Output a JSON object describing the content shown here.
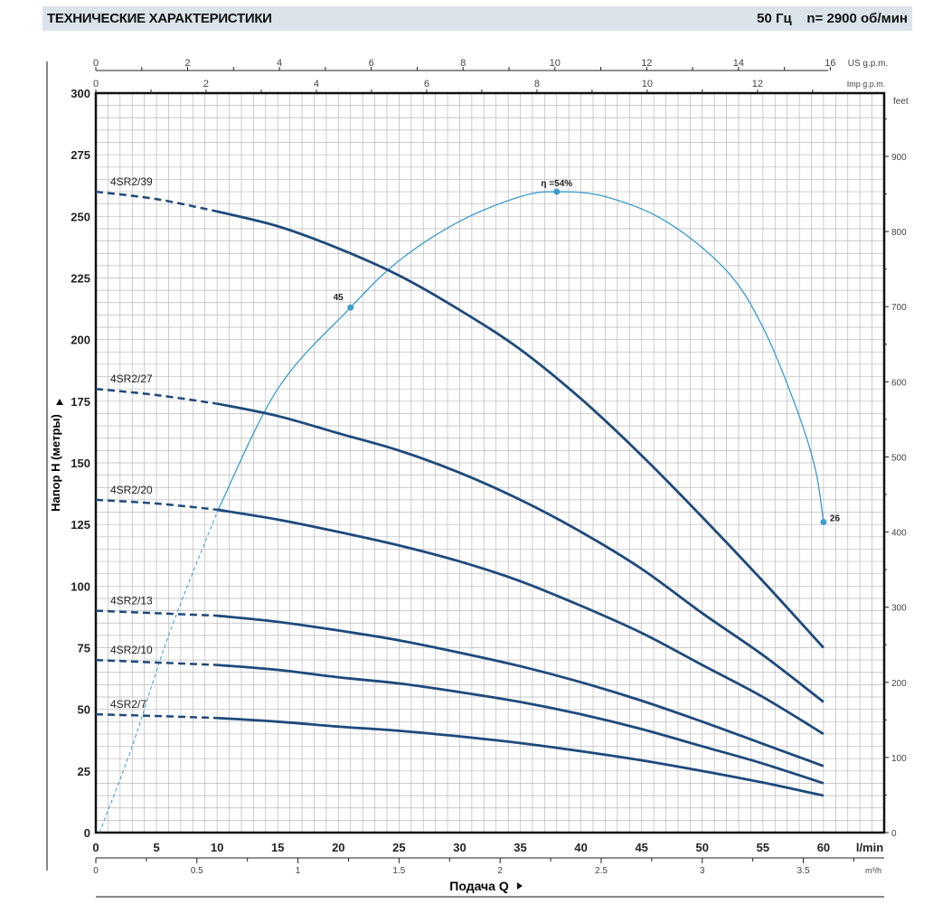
{
  "header": {
    "title": "ТЕХНИЧЕСКИЕ ХАРАКТЕРИСТИКИ",
    "freq": "50 Гц",
    "speed": "n= 2900  об/мин"
  },
  "chart_data": {
    "type": "line",
    "title": "ТЕХНИЧЕСКИЕ ХАРАКТЕРИСТИКИ",
    "xlabel": "Подача Q",
    "ylabel": "Напор H (метры)",
    "xlim": [
      0,
      65
    ],
    "ylim": [
      0,
      300
    ],
    "grid": true,
    "x_unit": "l/min",
    "x_ticks": [
      0,
      5,
      10,
      15,
      20,
      25,
      30,
      35,
      40,
      45,
      50,
      55,
      60
    ],
    "y_ticks": [
      0,
      25,
      50,
      75,
      100,
      125,
      150,
      175,
      200,
      225,
      250,
      275,
      300
    ],
    "right_axis": {
      "unit": "feet",
      "ticks": [
        0,
        100,
        200,
        300,
        400,
        500,
        600,
        700,
        800,
        900
      ]
    },
    "top_axis_us": {
      "unit": "US g.p.m.",
      "ticks": [
        0,
        2,
        4,
        6,
        8,
        10,
        12,
        14,
        16
      ]
    },
    "top_axis_imp": {
      "unit": "Imp g.p.m.",
      "ticks": [
        0,
        2,
        4,
        6,
        8,
        10,
        12
      ]
    },
    "bottom_axis_m3h": {
      "unit": "m³/h",
      "ticks": [
        "0",
        "0.5",
        "1",
        "1.5",
        "2",
        "2.5",
        "3",
        "3.5"
      ]
    },
    "dashed_until": 10,
    "series": [
      {
        "name": "4SR2/39",
        "x": [
          0,
          5,
          10,
          15,
          20,
          25,
          30,
          35,
          40,
          45,
          50,
          55,
          60
        ],
        "values": [
          260,
          257,
          252,
          246,
          237,
          226,
          212,
          196,
          176,
          153,
          128,
          102,
          75
        ]
      },
      {
        "name": "4SR2/27",
        "x": [
          0,
          5,
          10,
          15,
          20,
          25,
          30,
          35,
          40,
          45,
          50,
          55,
          60
        ],
        "values": [
          180,
          177.5,
          174,
          169,
          162,
          155,
          146,
          135,
          122,
          107,
          89,
          72,
          53
        ]
      },
      {
        "name": "4SR2/20",
        "x": [
          0,
          5,
          10,
          15,
          20,
          25,
          30,
          35,
          40,
          45,
          50,
          55,
          60
        ],
        "values": [
          135,
          133.5,
          131,
          127,
          122,
          116.5,
          110,
          102,
          92,
          81,
          68,
          55,
          40
        ]
      },
      {
        "name": "4SR2/13",
        "x": [
          0,
          5,
          10,
          15,
          20,
          25,
          30,
          35,
          40,
          45,
          50,
          55,
          60
        ],
        "values": [
          90,
          89,
          88,
          85.5,
          82,
          78,
          73,
          67.5,
          61,
          53.5,
          45,
          36,
          27
        ]
      },
      {
        "name": "4SR2/10",
        "x": [
          0,
          5,
          10,
          15,
          20,
          25,
          30,
          35,
          40,
          45,
          50,
          55,
          60
        ],
        "values": [
          70,
          69,
          68,
          66,
          63,
          60.5,
          57,
          53,
          48,
          42,
          35,
          28,
          20
        ]
      },
      {
        "name": "4SR2/7",
        "x": [
          0,
          5,
          10,
          15,
          20,
          25,
          30,
          35,
          40,
          45,
          50,
          55,
          60
        ],
        "values": [
          48,
          47.3,
          46.5,
          45,
          43,
          41.3,
          39,
          36.3,
          33,
          29.3,
          25,
          20.3,
          15
        ]
      }
    ],
    "efficiency": {
      "name": "η",
      "x": [
        0.3,
        3,
        6,
        10,
        15,
        21,
        25,
        30,
        35,
        38,
        42,
        47,
        52,
        55,
        57.7,
        59.3,
        60
      ],
      "plotted_y": [
        0,
        35,
        80,
        130,
        180,
        213,
        232,
        248,
        258,
        260,
        258,
        248,
        228,
        205,
        173,
        148,
        126
      ],
      "dashed_until": 10,
      "points": [
        {
          "x": 21,
          "y": 213,
          "label": "45"
        },
        {
          "x": 38,
          "y": 260,
          "label": "η =54%"
        },
        {
          "x": 60,
          "y": 126,
          "label": "26"
        }
      ]
    }
  },
  "colors": {
    "curve": "#1e4a7c",
    "efficiency": "#3a9ccc",
    "grid": "#b8b8b8",
    "header_bg": "#dbe4ea"
  }
}
